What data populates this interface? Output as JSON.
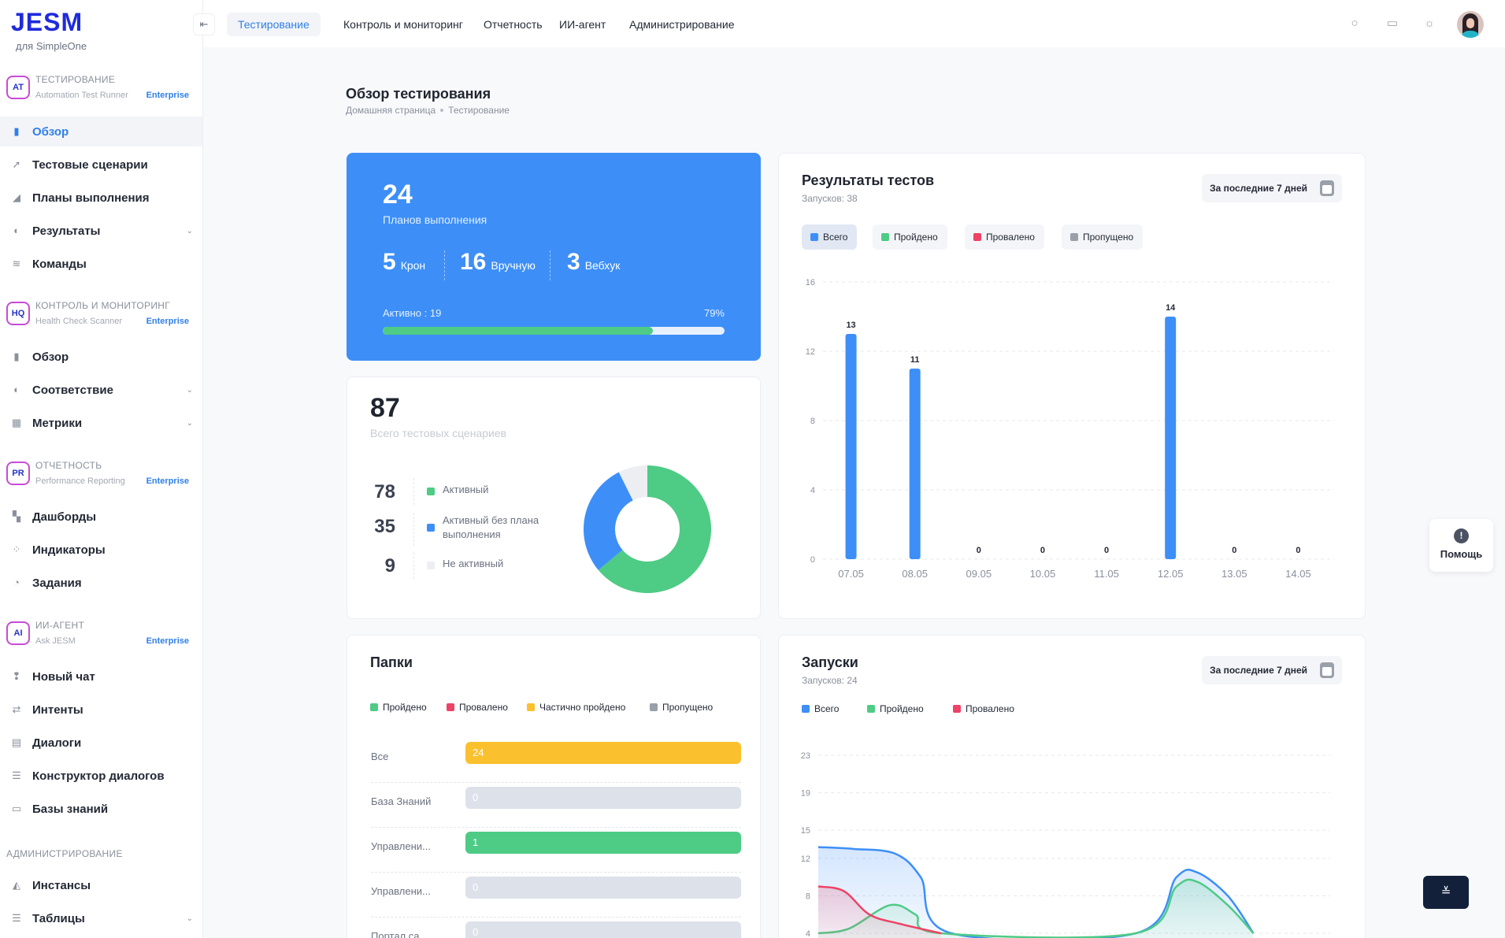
{
  "brand": {
    "logo": "JESM",
    "sub": "для SimpleOne"
  },
  "sidebar": {
    "collapse": "⇤",
    "sections": [
      {
        "title": "ТЕСТИРОВАНИЕ",
        "sub": "Automation Test Runner",
        "badge": "Enterprise",
        "icon": "AT"
      },
      {
        "title": "КОНТРОЛЬ И МОНИТОРИНГ",
        "sub": "Health Check Scanner",
        "badge": "Enterprise",
        "icon": "HQ"
      },
      {
        "title": "ОТЧЕТНОСТЬ",
        "sub": "Performance Reporting",
        "badge": "Enterprise",
        "icon": "PR"
      },
      {
        "title": "ИИ-АГЕНТ",
        "sub": "Ask JESM",
        "badge": "Enterprise",
        "icon": "AI"
      }
    ],
    "admin_title": "АДМИНИСТРИРОВАНИЕ",
    "items": [
      {
        "label": "Обзор",
        "icon": "chart-icon"
      },
      {
        "label": "Тестовые сценарии",
        "icon": "rocket-icon"
      },
      {
        "label": "Планы выполнения",
        "icon": "plan-icon"
      },
      {
        "label": "Результаты",
        "icon": "results-icon"
      },
      {
        "label": "Команды",
        "icon": "layers-icon"
      },
      {
        "label": "Обзор",
        "icon": "chart-icon"
      },
      {
        "label": "Соответствие",
        "icon": "compliance-icon"
      },
      {
        "label": "Метрики",
        "icon": "metrics-icon"
      },
      {
        "label": "Дашборды",
        "icon": "dashboard-icon"
      },
      {
        "label": "Индикаторы",
        "icon": "indicators-icon"
      },
      {
        "label": "Задания",
        "icon": "tasks-icon"
      },
      {
        "label": "Новый чат",
        "icon": "chat-icon"
      },
      {
        "label": "Интенты",
        "icon": "arrows-icon"
      },
      {
        "label": "Диалоги",
        "icon": "dialogs-icon"
      },
      {
        "label": "Конструктор диалогов",
        "icon": "builder-icon"
      },
      {
        "label": "Базы знаний",
        "icon": "book-icon"
      },
      {
        "label": "Инстансы",
        "icon": "instance-icon"
      },
      {
        "label": "Таблицы",
        "icon": "table-icon"
      }
    ]
  },
  "tabs": [
    "Тестирование",
    "Контроль и мониторинг",
    "Отчетность",
    "ИИ-агент",
    "Администрирование"
  ],
  "page": {
    "title": "Обзор тестирования",
    "crumbs": [
      "Домашняя страница",
      "Тестирование"
    ]
  },
  "plans": {
    "total": "24",
    "label": "Планов выполнения",
    "stats": [
      {
        "n": "5",
        "l": "Крон"
      },
      {
        "n": "16",
        "l": "Вручную"
      },
      {
        "n": "3",
        "l": "Вебхук"
      }
    ],
    "active": "Активно : 19",
    "pct_text": "79%",
    "progress": 0.79
  },
  "scenarios": {
    "total": "87",
    "label": "Всего тестовых сценариев",
    "rows": [
      {
        "n": "78",
        "l": "Активный",
        "color": "#4ecb85"
      },
      {
        "n": "35",
        "l": "Активный без плана выполнения",
        "color": "#3d8ff7"
      },
      {
        "n": "9",
        "l": "Не активный",
        "color": "#eceef2"
      }
    ]
  },
  "results": {
    "title": "Результаты тестов",
    "sub": "Запусков: 38",
    "period": "За последние 7 дней",
    "filters": [
      {
        "l": "Всего",
        "color": "#3d8ff7"
      },
      {
        "l": "Пройдено",
        "color": "#4ecb85"
      },
      {
        "l": "Провалено",
        "color": "#ee4266"
      },
      {
        "l": "Пропущено",
        "color": "#9aa0aa"
      }
    ]
  },
  "folders": {
    "title": "Папки",
    "legend": [
      {
        "l": "Пройдено",
        "color": "#4ecb85"
      },
      {
        "l": "Провалено",
        "color": "#ee4266"
      },
      {
        "l": "Частично пройдено",
        "color": "#fbc02d"
      },
      {
        "l": "Пропущено",
        "color": "#9aa0aa"
      }
    ],
    "rows": [
      {
        "name": "Все",
        "value": "24",
        "color": "#fbc02d"
      },
      {
        "name": "База Знаний",
        "value": "0",
        "color": "#dde1ea"
      },
      {
        "name": "Управлени...",
        "value": "1",
        "color": "#4ecb85"
      },
      {
        "name": "Управлени...",
        "value": "0",
        "color": "#dde1ea"
      },
      {
        "name": "Портал са...",
        "value": "0",
        "color": "#dde1ea"
      }
    ]
  },
  "runs": {
    "title": "Запуски",
    "sub": "Запусков: 24",
    "period": "За последние 7 дней",
    "legend": [
      {
        "l": "Всего",
        "color": "#3d8ff7"
      },
      {
        "l": "Пройдено",
        "color": "#4ecb85"
      },
      {
        "l": "Провалено",
        "color": "#ee4266"
      }
    ]
  },
  "help": {
    "label": "Помощь",
    "icon": "!"
  },
  "fab": {
    "icon": "≚"
  },
  "chart_data": [
    {
      "type": "pie",
      "title": "",
      "values": [
        78,
        35,
        9
      ],
      "labels": [
        "Активный",
        "Активный без плана выполнения",
        "Не активный"
      ],
      "colors": [
        "#4ecb85",
        "#3d8ff7",
        "#eceef2"
      ]
    },
    {
      "type": "bar",
      "title": "Результаты тестов",
      "categories": [
        "07.05",
        "08.05",
        "09.05",
        "10.05",
        "11.05",
        "12.05",
        "13.05",
        "14.05"
      ],
      "series": [
        {
          "name": "Всего",
          "values": [
            13,
            11,
            0,
            0,
            0,
            14,
            0,
            0
          ]
        }
      ],
      "ylim": [
        0,
        16
      ],
      "yticks": [
        0,
        4,
        8,
        12,
        16
      ],
      "grid": true,
      "color": "#3d8ff7"
    },
    {
      "type": "area",
      "title": "Запуски",
      "yticks": [
        4,
        8,
        12,
        15,
        19,
        23
      ],
      "ylim": [
        4,
        23
      ],
      "grid": true,
      "series": [
        {
          "name": "Всего",
          "color": "#3d8ff7",
          "points": [
            [
              0,
              13.2
            ],
            [
              0.07,
              13
            ],
            [
              0.15,
              12.5
            ],
            [
              0.2,
              10
            ],
            [
              0.26,
              4
            ],
            [
              0.62,
              4
            ],
            [
              0.7,
              10
            ],
            [
              0.74,
              10.5
            ],
            [
              0.8,
              8
            ],
            [
              0.85,
              4
            ]
          ]
        },
        {
          "name": "Пройдено",
          "color": "#4ecb85",
          "points": [
            [
              0,
              4
            ],
            [
              0.06,
              4.5
            ],
            [
              0.14,
              7
            ],
            [
              0.19,
              6
            ],
            [
              0.24,
              4
            ],
            [
              0.62,
              4
            ],
            [
              0.7,
              9
            ],
            [
              0.74,
              9.5
            ],
            [
              0.8,
              7
            ],
            [
              0.85,
              4
            ]
          ]
        },
        {
          "name": "Провалено",
          "color": "#ee4266",
          "points": [
            [
              0,
              9
            ],
            [
              0.05,
              8.5
            ],
            [
              0.1,
              6
            ],
            [
              0.16,
              5
            ],
            [
              0.24,
              4
            ]
          ]
        }
      ]
    }
  ]
}
